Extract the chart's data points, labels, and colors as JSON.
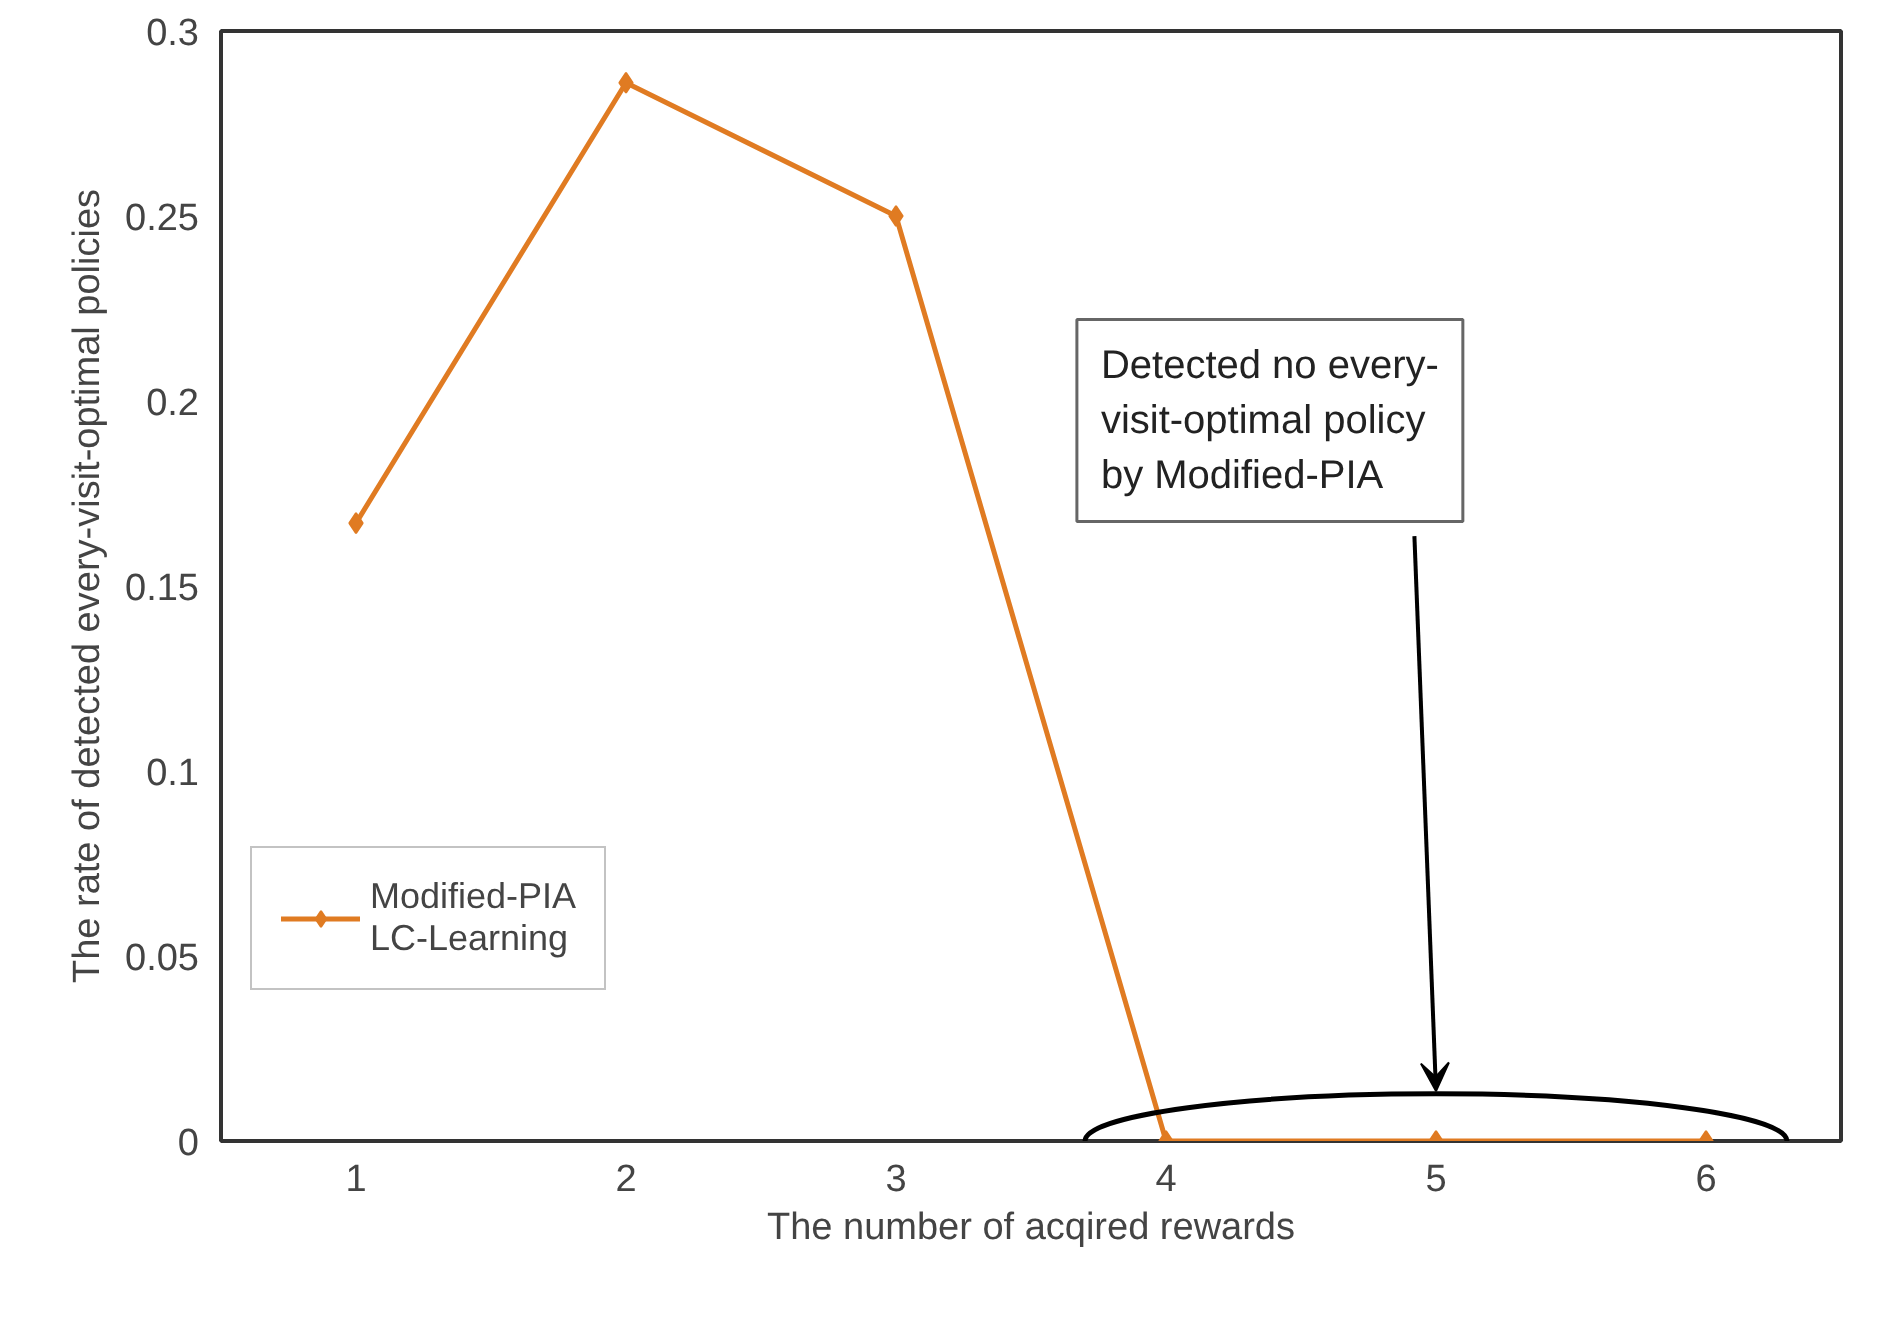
{
  "chart_data": {
    "type": "line",
    "xlabel": "The number of acqired rewards",
    "ylabel": "The rate of detected every-visit-optimal policies",
    "categories": [
      "1",
      "2",
      "3",
      "4",
      "5",
      "6"
    ],
    "series": [
      {
        "name": "Modified-PIA\nLC-Learning",
        "color": "#e07b22",
        "values": [
          0.167,
          0.286,
          0.25,
          0,
          0,
          0
        ]
      }
    ],
    "ylim": [
      0,
      0.3
    ],
    "yticks": [
      0,
      0.05,
      0.1,
      0.15,
      0.2,
      0.25,
      0.3
    ],
    "marker": "diamond",
    "line_style": "solid",
    "grid": false,
    "legend": "left",
    "annotations": [
      "Detected no every-visit-optimal policy by Modified-PIA"
    ]
  }
}
